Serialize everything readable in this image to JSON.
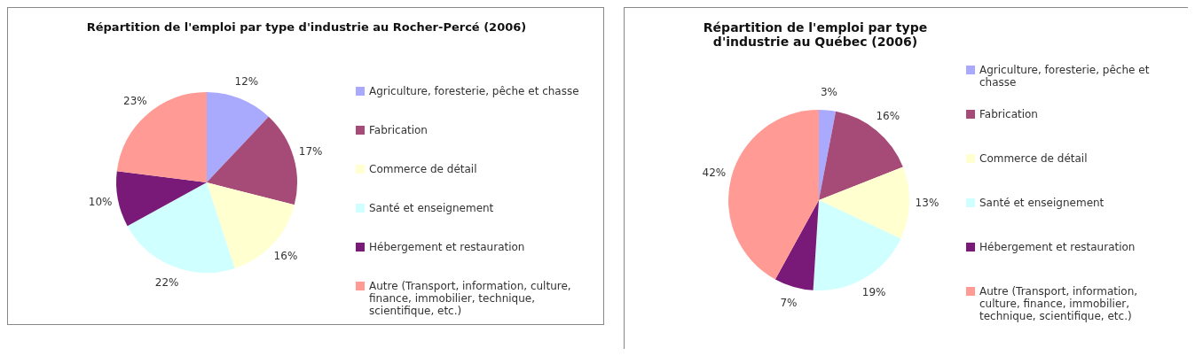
{
  "chart_data": [
    {
      "type": "pie",
      "title": "Répartition de l'emploi par type d'industrie au Rocher-Percé (2006)",
      "categories": [
        "Agriculture, foresterie, pêche et chasse",
        "Fabrication",
        "Commerce de détail",
        "Santé et enseignement",
        "Hébergement et restauration",
        "Autre (Transport, information, culture, finance, immobilier, technique, scientifique, etc.)"
      ],
      "values": [
        12,
        17,
        16,
        22,
        10,
        23
      ],
      "value_labels": [
        "12%",
        "17%",
        "16%",
        "22%",
        "10%",
        "23%"
      ],
      "colors": [
        "#a9a9fe",
        "#a64b78",
        "#ffffcf",
        "#d0ffff",
        "#7a1a78",
        "#ff9a94"
      ],
      "legend": "right"
    },
    {
      "type": "pie",
      "title": "Répartition de l'emploi par type d'industrie au Québec (2006)",
      "categories": [
        "Agriculture, foresterie, pêche et chasse",
        "Fabrication",
        "Commerce de détail",
        "Santé et enseignement",
        "Hébergement et restauration",
        "Autre (Transport, information, culture, finance, immobilier, technique, scientifique, etc.)"
      ],
      "values": [
        3,
        16,
        13,
        19,
        7,
        42
      ],
      "value_labels": [
        "3%",
        "16%",
        "13%",
        "19%",
        "7%",
        "42%"
      ],
      "colors": [
        "#a9a9fe",
        "#a64b78",
        "#ffffcf",
        "#d0ffff",
        "#7a1a78",
        "#ff9a94"
      ],
      "legend": "right"
    }
  ]
}
